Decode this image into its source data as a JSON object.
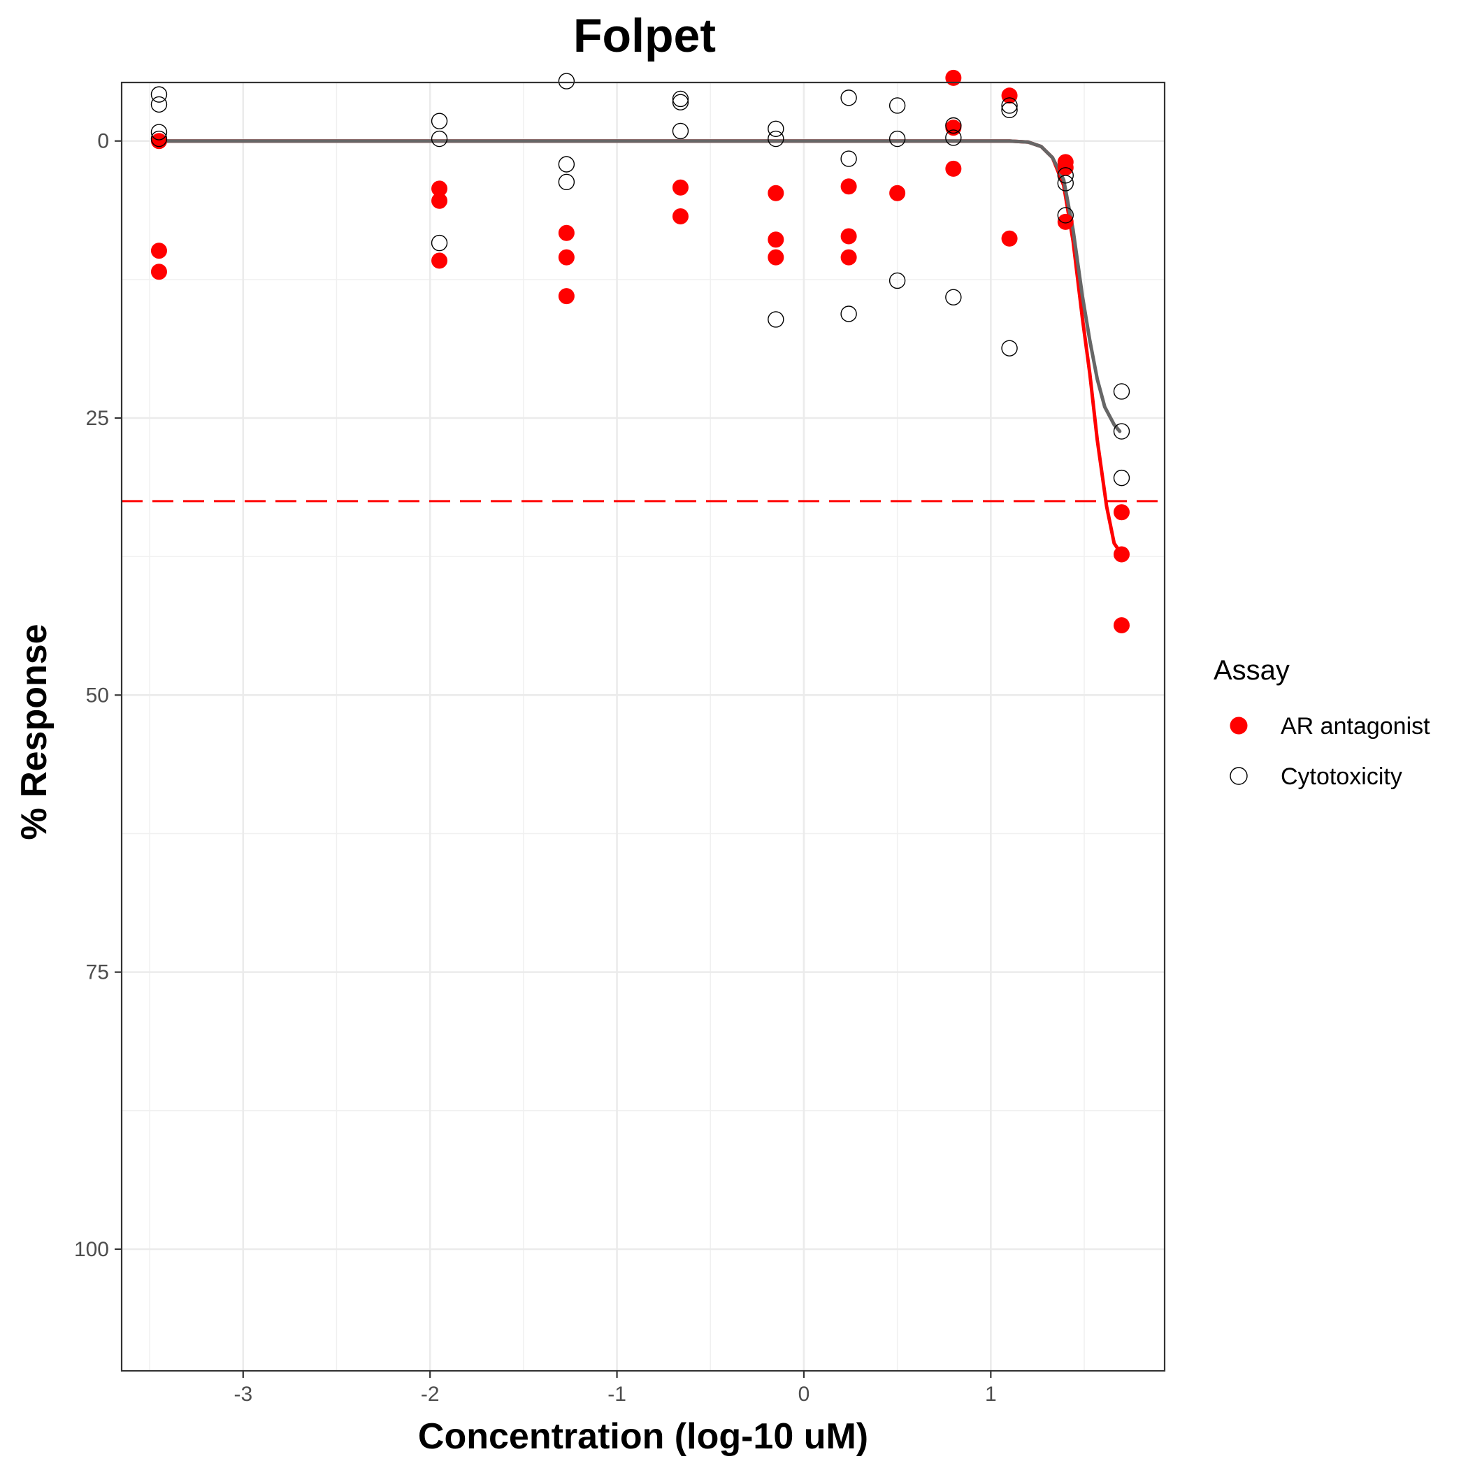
{
  "chart_data": {
    "type": "scatter",
    "title": "Folpet",
    "xlabel": "Concentration (log-10 uM)",
    "ylabel": "% Response",
    "xlim": [
      -3.65,
      1.93
    ],
    "ylim": [
      110.98,
      -5.28
    ],
    "y_reversed": true,
    "grid": true,
    "xticks": [
      -3,
      -2,
      -1,
      0,
      1
    ],
    "xtick_labels": [
      "-3",
      "-2",
      "-1",
      "0",
      "1"
    ],
    "yticks": [
      0,
      25,
      50,
      75,
      100
    ],
    "ytick_labels": [
      "0",
      "25",
      "50",
      "75",
      "100"
    ],
    "legend": {
      "title": "Assay",
      "position": "right",
      "entries": [
        {
          "label": "AR antagonist",
          "marker": "filled-circle",
          "color": "#ff0000"
        },
        {
          "label": "Cytotoxicity",
          "marker": "open-circle",
          "color": "#000000"
        }
      ]
    },
    "threshold_line": {
      "y": 32.5,
      "color": "#ff0000",
      "style": "dashed"
    },
    "series": [
      {
        "name": "AR antagonist",
        "color": "#ff0000",
        "marker": "filled-circle",
        "points": [
          {
            "x": -3.45,
            "y": 0
          },
          {
            "x": -3.45,
            "y": 9.9
          },
          {
            "x": -3.45,
            "y": 11.8
          },
          {
            "x": -1.95,
            "y": 4.3
          },
          {
            "x": -1.95,
            "y": 5.4
          },
          {
            "x": -1.95,
            "y": 10.8
          },
          {
            "x": -1.27,
            "y": 8.3
          },
          {
            "x": -1.27,
            "y": 10.5
          },
          {
            "x": -1.27,
            "y": 14
          },
          {
            "x": -0.66,
            "y": 4.2
          },
          {
            "x": -0.66,
            "y": 6.8
          },
          {
            "x": -0.15,
            "y": 4.7
          },
          {
            "x": -0.15,
            "y": 8.9
          },
          {
            "x": -0.15,
            "y": 10.5
          },
          {
            "x": 0.24,
            "y": 4.1
          },
          {
            "x": 0.24,
            "y": 8.6
          },
          {
            "x": 0.24,
            "y": 10.5
          },
          {
            "x": 0.5,
            "y": 4.7
          },
          {
            "x": 0.8,
            "y": -5.7
          },
          {
            "x": 0.8,
            "y": -1.2
          },
          {
            "x": 0.8,
            "y": 2.5
          },
          {
            "x": 1.1,
            "y": -4.1
          },
          {
            "x": 1.1,
            "y": 8.8
          },
          {
            "x": 1.4,
            "y": 1.9
          },
          {
            "x": 1.4,
            "y": 2.4
          },
          {
            "x": 1.4,
            "y": 7.3
          },
          {
            "x": 1.7,
            "y": 33.5
          },
          {
            "x": 1.7,
            "y": 37.3
          },
          {
            "x": 1.7,
            "y": 43.7
          }
        ],
        "fit_curve": [
          {
            "x": -3.45,
            "y": 0
          },
          {
            "x": 1.1,
            "y": 0
          },
          {
            "x": 1.2,
            "y": 0.1
          },
          {
            "x": 1.27,
            "y": 0.5
          },
          {
            "x": 1.33,
            "y": 1.5
          },
          {
            "x": 1.39,
            "y": 4
          },
          {
            "x": 1.44,
            "y": 9
          },
          {
            "x": 1.49,
            "y": 16
          },
          {
            "x": 1.53,
            "y": 21
          },
          {
            "x": 1.57,
            "y": 27
          },
          {
            "x": 1.62,
            "y": 33
          },
          {
            "x": 1.66,
            "y": 36.3
          },
          {
            "x": 1.7,
            "y": 37.3
          }
        ]
      },
      {
        "name": "Cytotoxicity",
        "color": "#000000",
        "marker": "open-circle",
        "points": [
          {
            "x": -3.45,
            "y": -4.2
          },
          {
            "x": -3.45,
            "y": -3.3
          },
          {
            "x": -3.45,
            "y": -0.8
          },
          {
            "x": -3.45,
            "y": -0.2
          },
          {
            "x": -1.95,
            "y": -1.8
          },
          {
            "x": -1.95,
            "y": -0.2
          },
          {
            "x": -1.95,
            "y": 9.2
          },
          {
            "x": -1.27,
            "y": -5.4
          },
          {
            "x": -1.27,
            "y": 2.1
          },
          {
            "x": -1.27,
            "y": 3.7
          },
          {
            "x": -0.66,
            "y": -3.8
          },
          {
            "x": -0.66,
            "y": -3.5
          },
          {
            "x": -0.66,
            "y": -0.9
          },
          {
            "x": -0.15,
            "y": -1.1
          },
          {
            "x": -0.15,
            "y": -0.2
          },
          {
            "x": -0.15,
            "y": 16.1
          },
          {
            "x": 0.24,
            "y": -3.9
          },
          {
            "x": 0.24,
            "y": 1.6
          },
          {
            "x": 0.24,
            "y": 15.6
          },
          {
            "x": 0.5,
            "y": -3.2
          },
          {
            "x": 0.5,
            "y": -0.2
          },
          {
            "x": 0.5,
            "y": 12.6
          },
          {
            "x": 0.8,
            "y": -1.4
          },
          {
            "x": 0.8,
            "y": -0.3
          },
          {
            "x": 0.8,
            "y": 14.1
          },
          {
            "x": 1.1,
            "y": -3.2
          },
          {
            "x": 1.1,
            "y": -2.8
          },
          {
            "x": 1.1,
            "y": 18.7
          },
          {
            "x": 1.4,
            "y": 3.1
          },
          {
            "x": 1.4,
            "y": 3.8
          },
          {
            "x": 1.4,
            "y": 6.7
          },
          {
            "x": 1.7,
            "y": 22.6
          },
          {
            "x": 1.7,
            "y": 26.2
          },
          {
            "x": 1.7,
            "y": 30.4
          }
        ],
        "fit_curve": [
          {
            "x": -3.45,
            "y": 0
          },
          {
            "x": 1.1,
            "y": 0
          },
          {
            "x": 1.2,
            "y": 0.1
          },
          {
            "x": 1.27,
            "y": 0.5
          },
          {
            "x": 1.33,
            "y": 1.5
          },
          {
            "x": 1.39,
            "y": 3.5
          },
          {
            "x": 1.44,
            "y": 8
          },
          {
            "x": 1.49,
            "y": 14
          },
          {
            "x": 1.53,
            "y": 18
          },
          {
            "x": 1.57,
            "y": 21.5
          },
          {
            "x": 1.61,
            "y": 24
          },
          {
            "x": 1.66,
            "y": 25.6
          },
          {
            "x": 1.69,
            "y": 26.2
          }
        ]
      }
    ]
  }
}
